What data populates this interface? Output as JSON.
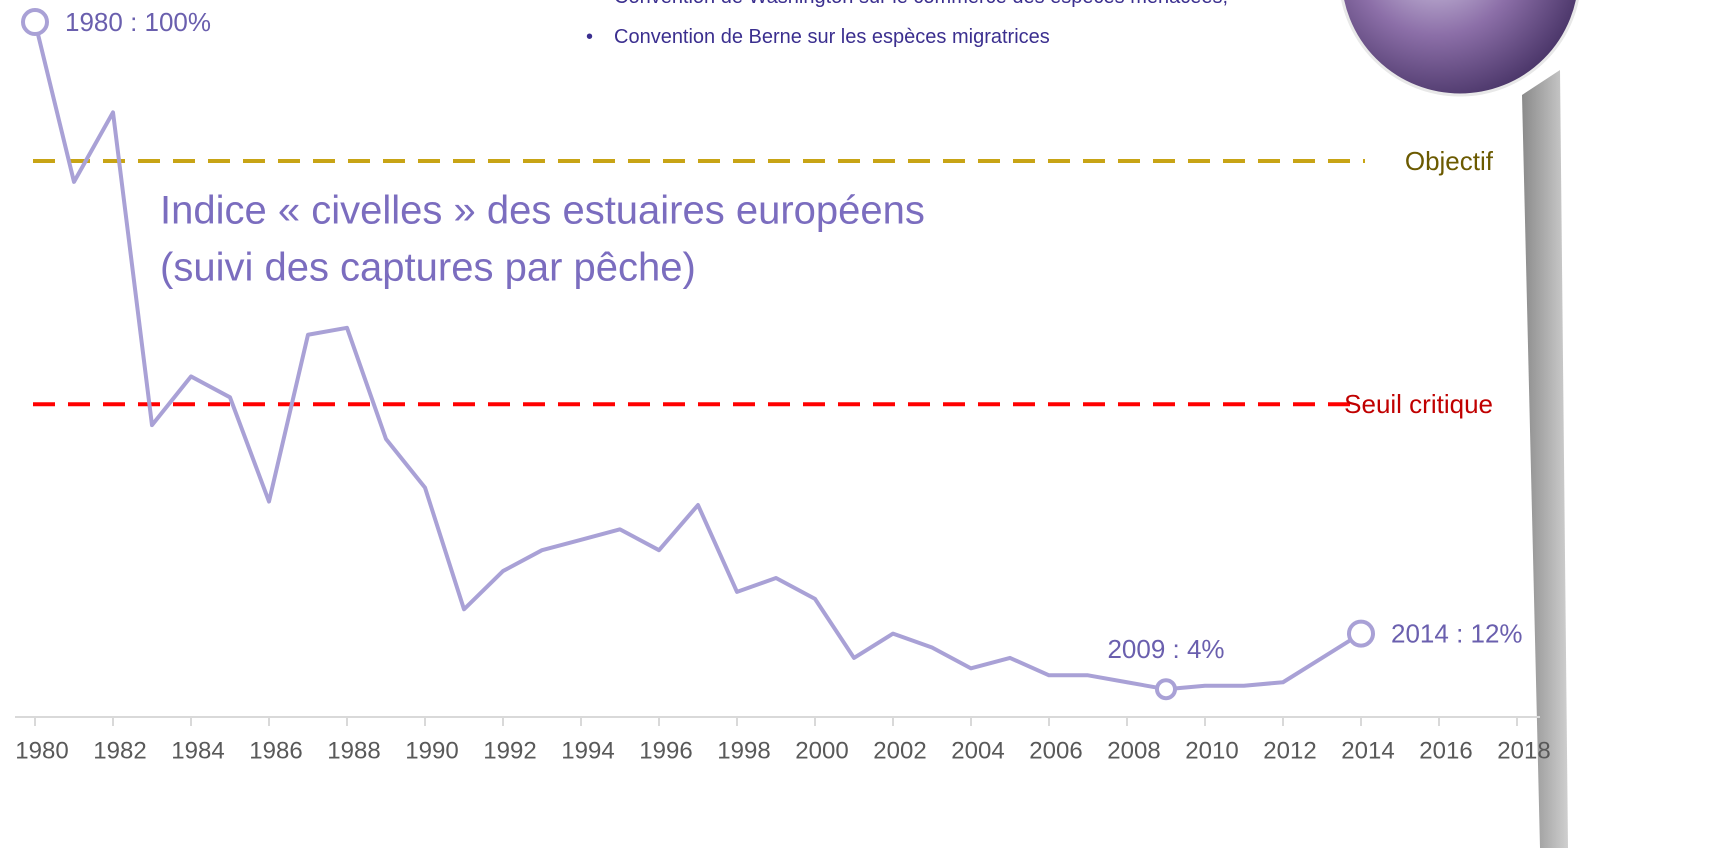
{
  "chart_data": {
    "type": "line",
    "title": "Indice « civelles » des estuaires européens",
    "subtitle": "(suivi des captures par pêche)",
    "bullets": [
      "Convention de Washington sur le commerce des espèces menacées,",
      "Convention de Berne sur les espèces migratrices"
    ],
    "x": [
      1980,
      1981,
      1982,
      1983,
      1984,
      1985,
      1986,
      1987,
      1988,
      1989,
      1990,
      1991,
      1992,
      1993,
      1994,
      1995,
      1996,
      1997,
      1998,
      1999,
      2000,
      2001,
      2002,
      2003,
      2004,
      2005,
      2006,
      2007,
      2008,
      2009,
      2010,
      2011,
      2012,
      2013,
      2014
    ],
    "values": [
      100,
      77,
      87,
      42,
      49,
      46,
      31,
      55,
      56,
      40,
      33,
      15.5,
      21,
      24,
      25.5,
      27,
      24,
      30.5,
      18,
      20,
      17,
      8.5,
      12,
      10,
      7,
      8.5,
      6,
      6,
      5,
      4,
      4.5,
      4.5,
      5,
      8.5,
      12
    ],
    "value_labels": [
      "1980 : 100%",
      null,
      null,
      null,
      null,
      null,
      null,
      null,
      null,
      null,
      null,
      null,
      null,
      null,
      null,
      null,
      null,
      null,
      null,
      null,
      null,
      null,
      null,
      null,
      null,
      null,
      null,
      null,
      null,
      "2009 : 4%",
      null,
      null,
      null,
      null,
      "2014 : 12%"
    ],
    "color": "#a9a1d6",
    "xlim": [
      1979.5,
      2018.5
    ],
    "xticks": [
      1980,
      1982,
      1984,
      1986,
      1988,
      1990,
      1992,
      1994,
      1996,
      1998,
      2000,
      2002,
      2004,
      2006,
      2008,
      2010,
      2012,
      2014,
      2016,
      2018
    ],
    "ylim": [
      0,
      100
    ],
    "reference_lines": [
      {
        "label": "Objectif",
        "value": 80,
        "color": "#c8a415",
        "label_color": "#6b5a00"
      },
      {
        "label": "Seuil critique",
        "value": 45,
        "color": "#ff0000",
        "label_color": "#c00000"
      }
    ]
  }
}
